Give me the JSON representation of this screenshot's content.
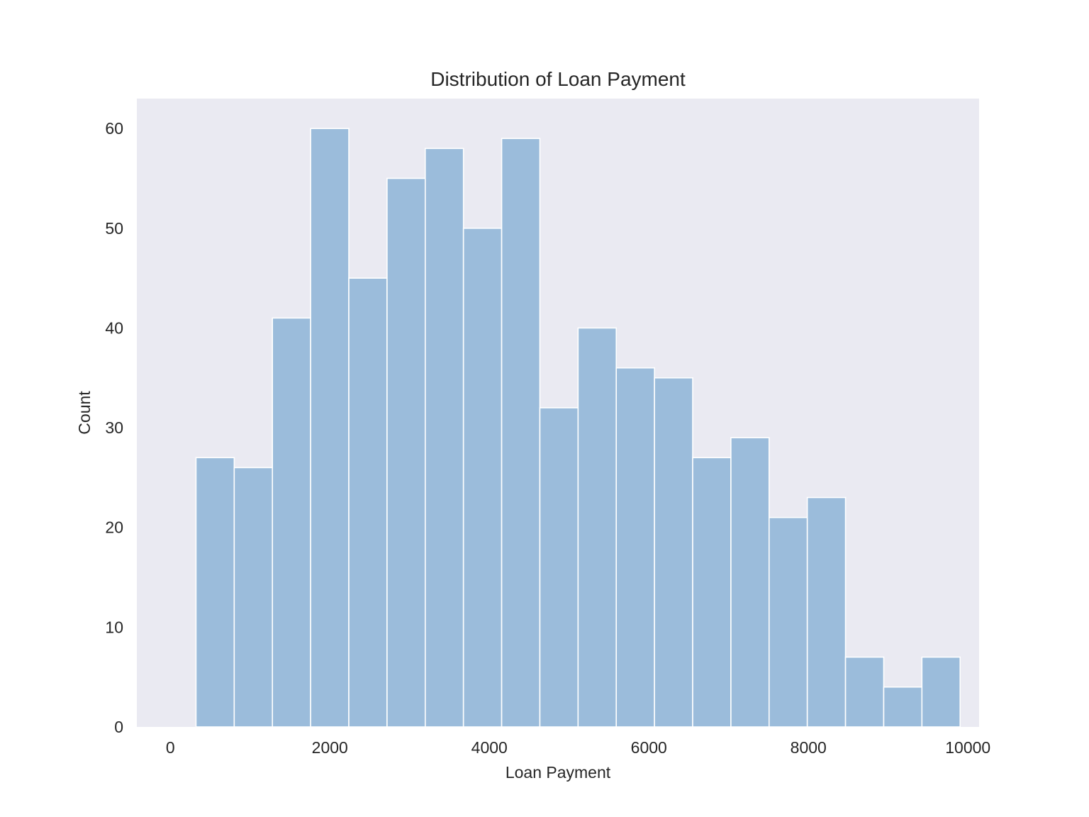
{
  "chart_data": {
    "type": "bar",
    "title": "Distribution of Loan Payment",
    "xlabel": "Loan Payment",
    "ylabel": "Count",
    "bin_edges": [
      322,
      801,
      1280,
      1759,
      2238,
      2717,
      3196,
      3675,
      4154,
      4633,
      5112,
      5591,
      6070,
      6549,
      7028,
      7507,
      7986,
      8465,
      8944,
      9423,
      9902
    ],
    "values": [
      27,
      26,
      41,
      60,
      45,
      55,
      58,
      50,
      59,
      32,
      40,
      36,
      35,
      27,
      29,
      21,
      23,
      7,
      4,
      7
    ],
    "xlim": [
      -420,
      10140
    ],
    "ylim": [
      0,
      63
    ],
    "xticks": [
      0,
      2000,
      4000,
      6000,
      8000,
      10000
    ],
    "yticks": [
      0,
      10,
      20,
      30,
      40,
      50,
      60
    ],
    "grid": false,
    "colors": {
      "bar": "#9bbcdb",
      "bar_edge": "#ffffff",
      "plot_background": "#eaeaf2",
      "text": "#262626"
    }
  }
}
